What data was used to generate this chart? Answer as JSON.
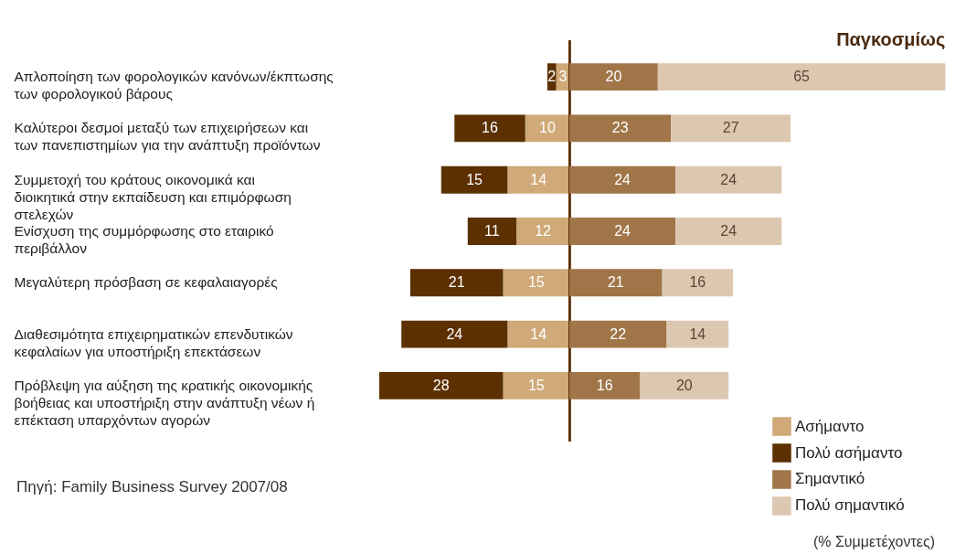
{
  "chart_data": [
    {
      "type": "bar",
      "orientation": "horizontal",
      "stacked": true,
      "tick_labels": "y",
      "categories": [
        "Απλοποίηση των φορολογικών κανόνων/έκπτωσης των φορολογικού βάρους",
        "Καλύτεροι δεσμοί μεταξύ των επιχειρήσεων και των πανεπιστημίων για την ανάπτυξη προϊόντων",
        "Συμμετοχή του κράτους οικονομικά και διοικητικά στην εκπαίδευση και επιμόρφωση στελεχών",
        "Ενίσχυση της συμμόρφωσης στο εταιρικό περιβάλλον",
        "Μεγαλύτερη πρόσβαση σε κεφαλαιαγορές",
        "Διαθεσιμότητα επιχειρηματικών επενδυτικών κεφαλαίων για υποστήριξη επεκτάσεων",
        "Πρόβλεψη για αύξηση της κρατικής οικονομικής βοήθειας και υποστήριξη στην ανάπτυξη νέων ή επέκταση υπαρχόντων αγορών"
      ],
      "series": [
        {
          "name": "Ασήμαντο",
          "color": "#cfa978",
          "values": [
            3,
            10,
            14,
            12,
            15,
            14,
            15
          ]
        },
        {
          "name": "Πολύ ασήμαντο",
          "color": "#5c3000",
          "values": [
            2,
            16,
            15,
            11,
            21,
            24,
            28
          ]
        }
      ],
      "xlim": [
        43,
        0
      ],
      "data_labels": true,
      "legend": "bottom right",
      "ref_lines": [
        {
          "axis": "x",
          "value": 0,
          "color": "#5c3000"
        }
      ],
      "annotations": [
        "Πηγή: Family Business Survey 2007/08"
      ]
    },
    {
      "type": "bar",
      "orientation": "horizontal",
      "stacked": true,
      "tick_labels": false,
      "title": "Παγκοσμίως",
      "categories": [
        null,
        null,
        null,
        null,
        null,
        null,
        null
      ],
      "series": [
        {
          "name": "Σημαντικό",
          "color": "#a07548",
          "values": [
            20,
            23,
            24,
            24,
            21,
            22,
            16
          ]
        },
        {
          "name": "Πολύ σημαντικό",
          "color": "#dcc7b0",
          "values": [
            65,
            27,
            24,
            24,
            16,
            14,
            20
          ]
        }
      ],
      "xlim": [
        0,
        85
      ],
      "data_labels": true,
      "legend": "bottom right",
      "annotations": [
        "(% Συμμετέχοντες)"
      ]
    }
  ]
}
